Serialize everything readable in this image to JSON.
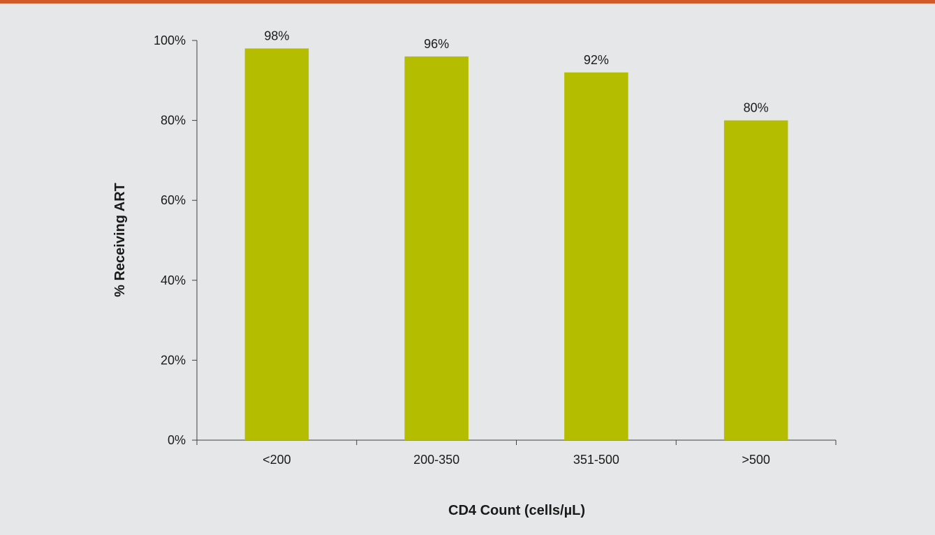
{
  "colors": {
    "top_bar": "#d2592a",
    "background": "#e6e7e8",
    "bar": "#b5bd00",
    "axis": "#404040"
  },
  "chart_data": {
    "type": "bar",
    "categories": [
      "<200",
      "200-350",
      "351-500",
      ">500"
    ],
    "values": [
      98,
      96,
      92,
      80
    ],
    "data_labels": [
      "98%",
      "96%",
      "92%",
      "80%"
    ],
    "xlabel": "CD4 Count (cells/µL)",
    "ylabel": "% Receiving ART",
    "ylim": [
      0,
      100
    ],
    "yticks": [
      0,
      20,
      40,
      60,
      80,
      100
    ],
    "ytick_labels": [
      "0%",
      "20%",
      "40%",
      "60%",
      "80%",
      "100%"
    ],
    "grid": false,
    "legend": "none"
  }
}
